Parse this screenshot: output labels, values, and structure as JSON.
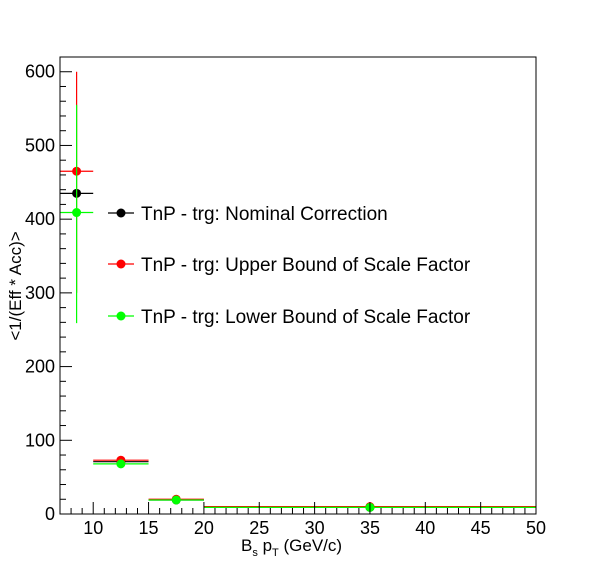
{
  "chart_data": {
    "type": "scatter",
    "title": "",
    "xlabel": {
      "main": "B",
      "sub1": "s",
      "mid": " p",
      "sub2": "T",
      "tail": " (GeV/c)"
    },
    "ylabel": "<1/(Eff * Acc)>",
    "xlim": [
      7,
      50
    ],
    "ylim": [
      0,
      620
    ],
    "x_ticks": [
      10,
      15,
      20,
      25,
      30,
      35,
      40,
      45,
      50
    ],
    "x_tick_labels": [
      "10",
      "15",
      "20",
      "25",
      "30",
      "35",
      "40",
      "45",
      "50"
    ],
    "y_ticks": [
      0,
      100,
      200,
      300,
      400,
      500,
      600
    ],
    "y_tick_labels": [
      "0",
      "100",
      "200",
      "300",
      "400",
      "500",
      "600"
    ],
    "grid": false,
    "legend_position": "center",
    "series": [
      {
        "name": "TnP - trg: Nominal Correction",
        "color": "#000000",
        "points": [
          {
            "x": 8.5,
            "xlow": 7,
            "xhigh": 10,
            "y": 435,
            "yerr_low": 0,
            "yerr_high": 0
          },
          {
            "x": 12.5,
            "xlow": 10,
            "xhigh": 15,
            "y": 71,
            "yerr_low": 0,
            "yerr_high": 0
          },
          {
            "x": 17.5,
            "xlow": 15,
            "xhigh": 20,
            "y": 19,
            "yerr_low": 0,
            "yerr_high": 0
          },
          {
            "x": 35,
            "xlow": 20,
            "xhigh": 50,
            "y": 9,
            "yerr_low": 0,
            "yerr_high": 0
          }
        ]
      },
      {
        "name": "TnP - trg: Upper Bound of Scale Factor",
        "color": "#ff0000",
        "points": [
          {
            "x": 8.5,
            "xlow": 7,
            "xhigh": 10,
            "y": 465,
            "yerr_low": 165,
            "yerr_high": 135
          },
          {
            "x": 12.5,
            "xlow": 10,
            "xhigh": 15,
            "y": 73,
            "yerr_low": 0,
            "yerr_high": 0
          },
          {
            "x": 17.5,
            "xlow": 15,
            "xhigh": 20,
            "y": 20,
            "yerr_low": 0,
            "yerr_high": 0
          },
          {
            "x": 35,
            "xlow": 20,
            "xhigh": 50,
            "y": 10,
            "yerr_low": 0,
            "yerr_high": 0
          }
        ]
      },
      {
        "name": "TnP - trg: Lower Bound of Scale Factor",
        "color": "#00ff00",
        "points": [
          {
            "x": 8.5,
            "xlow": 7,
            "xhigh": 10,
            "y": 409,
            "yerr_low": 150,
            "yerr_high": 146
          },
          {
            "x": 12.5,
            "xlow": 10,
            "xhigh": 15,
            "y": 68,
            "yerr_low": 0,
            "yerr_high": 0
          },
          {
            "x": 17.5,
            "xlow": 15,
            "xhigh": 20,
            "y": 19,
            "yerr_low": 0,
            "yerr_high": 0
          },
          {
            "x": 35,
            "xlow": 20,
            "xhigh": 50,
            "y": 9,
            "yerr_low": 0,
            "yerr_high": 0
          }
        ]
      }
    ]
  }
}
